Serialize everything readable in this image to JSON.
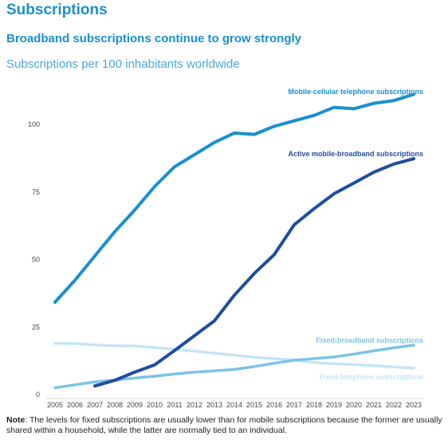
{
  "heading": "Subscriptions",
  "subtitle": "Broadband subscriptions continue to grow strongly",
  "caption": "Subscriptions per 100 inhabitants worldwide",
  "note": {
    "label": "Note",
    "text": ": The levels for fixed subscriptions are usually lower than for mobile subscriptions because the former are usually shared within a household, while the latter are normally tied to an individual."
  },
  "chart_data": {
    "type": "line",
    "x": [
      "2005",
      "2006",
      "2007",
      "2008",
      "2009",
      "2010",
      "2011",
      "2012",
      "2013",
      "2014",
      "2015",
      "2016",
      "2017",
      "2018",
      "2019",
      "2020",
      "2021",
      "2022",
      "2023"
    ],
    "ylim": [
      0,
      115
    ],
    "yticks": [
      0,
      25,
      50,
      75,
      100
    ],
    "grid": false,
    "series": [
      {
        "name": "Mobile-cellular telephone subscriptions",
        "color": "#1a8fd0",
        "values": [
          33.9,
          42,
          51,
          60,
          68,
          76.7,
          84,
          88.5,
          93,
          96.5,
          96,
          99,
          101,
          103,
          106,
          105.5,
          107.5,
          108.5,
          110.8
        ]
      },
      {
        "name": "Active mobile-broadband subscriptions",
        "color": "#1f4e9e",
        "values": [
          null,
          null,
          2.9,
          5,
          8,
          10.7,
          16,
          21.5,
          27,
          36.5,
          44.5,
          51.5,
          62.5,
          68.5,
          74,
          78,
          82,
          85,
          87
        ]
      },
      {
        "name": "Fixed-broadband subscriptions",
        "color": "#7cc3e8",
        "values": [
          2.2,
          3.3,
          4.4,
          5.1,
          5.8,
          6.5,
          7.3,
          8,
          8.5,
          9,
          10.1,
          11.3,
          12.4,
          13,
          13.6,
          14.7,
          15.9,
          17,
          18
        ]
      },
      {
        "name": "Fixed-telephone subscriptions",
        "color": "#c5e5f6",
        "values": [
          18.6,
          18.6,
          18.1,
          17.8,
          17.7,
          17.1,
          16.5,
          15.8,
          15,
          14.3,
          13.5,
          13,
          12.5,
          11.6,
          11.1,
          10.8,
          10.4,
          9.9,
          9.5
        ]
      }
    ]
  }
}
